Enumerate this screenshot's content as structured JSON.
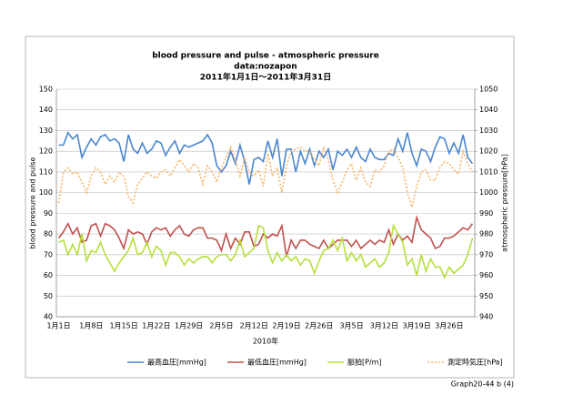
{
  "chart_data": {
    "type": "line",
    "title": "blood pressure and pulse  - atmospheric pressure",
    "subtitle": "data:nozapon",
    "date_range": "2011年1月1日～2011年3月31日",
    "x_label": "2010年",
    "y_label": "blood pressure and pulse",
    "y2_label": "atmospheric pressure[hPa]",
    "categories": [
      "1月1日",
      null,
      null,
      null,
      null,
      null,
      null,
      "1月8日",
      null,
      null,
      null,
      null,
      null,
      null,
      "1月15日",
      null,
      null,
      null,
      null,
      null,
      null,
      "1月22日",
      null,
      null,
      null,
      null,
      null,
      null,
      "1月29日",
      null,
      null,
      null,
      null,
      null,
      null,
      "2月5日",
      null,
      null,
      null,
      null,
      null,
      null,
      "2月12日",
      null,
      null,
      null,
      null,
      null,
      null,
      "2月19日",
      null,
      null,
      null,
      null,
      null,
      null,
      "2月26日",
      null,
      null,
      null,
      null,
      null,
      null,
      "3月5日",
      null,
      null,
      null,
      null,
      null,
      null,
      "3月12日",
      null,
      null,
      null,
      null,
      null,
      null,
      "3月19日",
      null,
      null,
      null,
      null,
      null,
      null,
      "3月26日",
      null,
      null,
      null,
      null,
      null
    ],
    "ylim": [
      40,
      150
    ],
    "yticks": [
      40,
      50,
      60,
      70,
      80,
      90,
      100,
      110,
      120,
      130,
      140,
      150
    ],
    "y2lim": [
      940,
      1050
    ],
    "y2ticks": [
      940,
      950,
      960,
      970,
      980,
      990,
      1000,
      1010,
      1020,
      1030,
      1040,
      1050
    ],
    "grid": true,
    "series": [
      {
        "name": "最高血圧[mmHg]",
        "color": "#4a86d0",
        "values": [
          123,
          123,
          129,
          126,
          128,
          117,
          122,
          126,
          123,
          127,
          128,
          125,
          126,
          124,
          115,
          128,
          121,
          119,
          124,
          119,
          121,
          125,
          124,
          118,
          122,
          125,
          119,
          123,
          122,
          123,
          124,
          125,
          128,
          124,
          113,
          110,
          113,
          120,
          114,
          123,
          115,
          104,
          116,
          117,
          115,
          125,
          117,
          126,
          108,
          121,
          121,
          110,
          120,
          114,
          121,
          113,
          120,
          117,
          121,
          111,
          120,
          118,
          121,
          117,
          122,
          117,
          115,
          121,
          117,
          116,
          116,
          119,
          118,
          126,
          120,
          129,
          119,
          113,
          121,
          120,
          115,
          122,
          127,
          126,
          119,
          124,
          119,
          128,
          117,
          114
        ]
      },
      {
        "name": "最低血圧[mmHg]",
        "color": "#c0504d",
        "values": [
          78,
          81,
          85,
          80,
          83,
          76,
          77,
          84,
          85,
          79,
          85,
          84,
          82,
          78,
          73,
          82,
          80,
          81,
          80,
          75,
          81,
          83,
          82,
          83,
          79,
          82,
          84,
          80,
          79,
          82,
          83,
          83,
          78,
          78,
          77,
          72,
          80,
          73,
          78,
          75,
          81,
          81,
          74,
          75,
          80,
          78,
          80,
          79,
          84,
          69,
          77,
          73,
          77,
          77,
          75,
          74,
          73,
          77,
          73,
          75,
          77,
          77,
          77,
          74,
          77,
          73,
          75,
          77,
          75,
          77,
          76,
          82,
          75,
          80,
          77,
          79,
          76,
          88,
          82,
          80,
          78,
          73,
          74,
          78,
          78,
          79,
          81,
          83,
          82,
          85
        ]
      },
      {
        "name": "脈拍[P/m]",
        "color": "#b5e03c",
        "values": [
          76,
          77,
          70,
          75,
          70,
          80,
          67,
          72,
          71,
          76,
          70,
          66,
          62,
          66,
          69,
          72,
          78,
          70,
          71,
          76,
          69,
          74,
          72,
          65,
          71,
          71,
          69,
          65,
          68,
          66,
          68,
          69,
          69,
          66,
          69,
          70,
          70,
          67,
          70,
          77,
          69,
          71,
          73,
          84,
          83,
          72,
          66,
          71,
          67,
          70,
          67,
          69,
          65,
          68,
          67,
          61,
          67,
          72,
          73,
          77,
          72,
          78,
          67,
          71,
          67,
          70,
          64,
          66,
          68,
          64,
          66,
          71,
          84,
          80,
          76,
          65,
          68,
          60,
          70,
          62,
          68,
          64,
          64,
          59,
          64,
          61,
          63,
          65,
          70,
          78
        ]
      },
      {
        "name": "測定時気圧[hPa]",
        "color": "#f7b56a",
        "axis": "y2",
        "dashed": true,
        "values": [
          995,
          1010,
          1012,
          1009,
          1010,
          1005,
          1000,
          1008,
          1012,
          1010,
          1004,
          1008,
          1005,
          1010,
          1008,
          998,
          995,
          1004,
          1007,
          1010,
          1008,
          1007,
          1010,
          1011,
          1008,
          1012,
          1016,
          1013,
          1010,
          1014,
          1012,
          1004,
          1013,
          1010,
          1005,
          1012,
          1017,
          1022,
          1016,
          1008,
          1017,
          1010,
          1008,
          1011,
          1003,
          1019,
          1008,
          1012,
          1000,
          1013,
          1020,
          1021,
          1022,
          1020,
          1020,
          1016,
          1013,
          1022,
          1016,
          1006,
          1000,
          1005,
          1011,
          1014,
          1006,
          1012,
          1005,
          1003,
          1011,
          1010,
          1013,
          1020,
          1021,
          1017,
          1012,
          1000,
          993,
          1003,
          1010,
          1011,
          1006,
          1006,
          1012,
          1015,
          1014,
          1011,
          1009,
          1020,
          1014,
          1010
        ]
      }
    ]
  },
  "footer": "Graph20-44 b (4)"
}
